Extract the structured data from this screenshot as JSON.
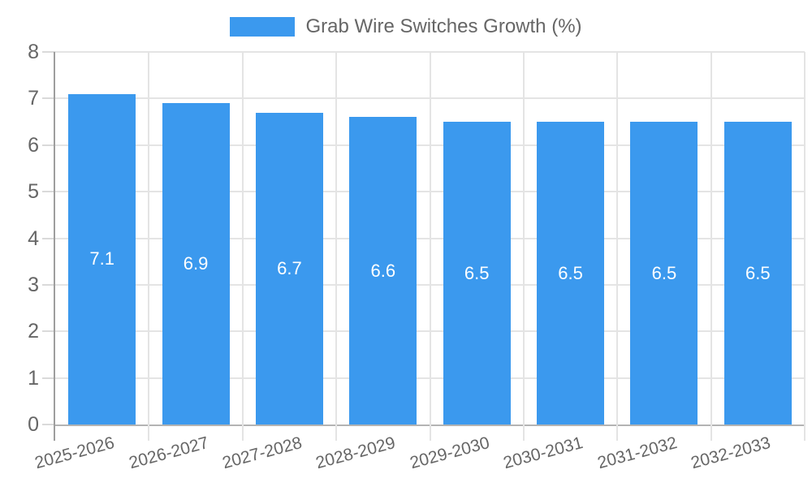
{
  "chart_data": {
    "type": "bar",
    "title": "Grab Wire Switches Growth (%)",
    "categories": [
      "2025-2026",
      "2026-2027",
      "2027-2028",
      "2028-2029",
      "2029-2030",
      "2030-2031",
      "2031-2032",
      "2032-2033"
    ],
    "series": [
      {
        "name": "Grab Wire Switches Growth (%)",
        "values": [
          7.1,
          6.9,
          6.7,
          6.6,
          6.5,
          6.5,
          6.5,
          6.5
        ]
      }
    ],
    "value_labels": [
      "7.1",
      "6.9",
      "6.7",
      "6.6",
      "6.5",
      "6.5",
      "6.5",
      "6.5"
    ],
    "xlabel": "",
    "ylabel": "",
    "ylim": [
      0,
      8
    ],
    "yticks": [
      0,
      1,
      2,
      3,
      4,
      5,
      6,
      7,
      8
    ],
    "grid": true,
    "legend_position": "top",
    "colors": {
      "bar": "#3b99ee",
      "value_label": "#ffffff",
      "axis_text": "#666666",
      "gridline": "#e4e4e4",
      "y_axis_line": "#9e9e9e",
      "x_axis_line": "#b3b3b3"
    }
  }
}
